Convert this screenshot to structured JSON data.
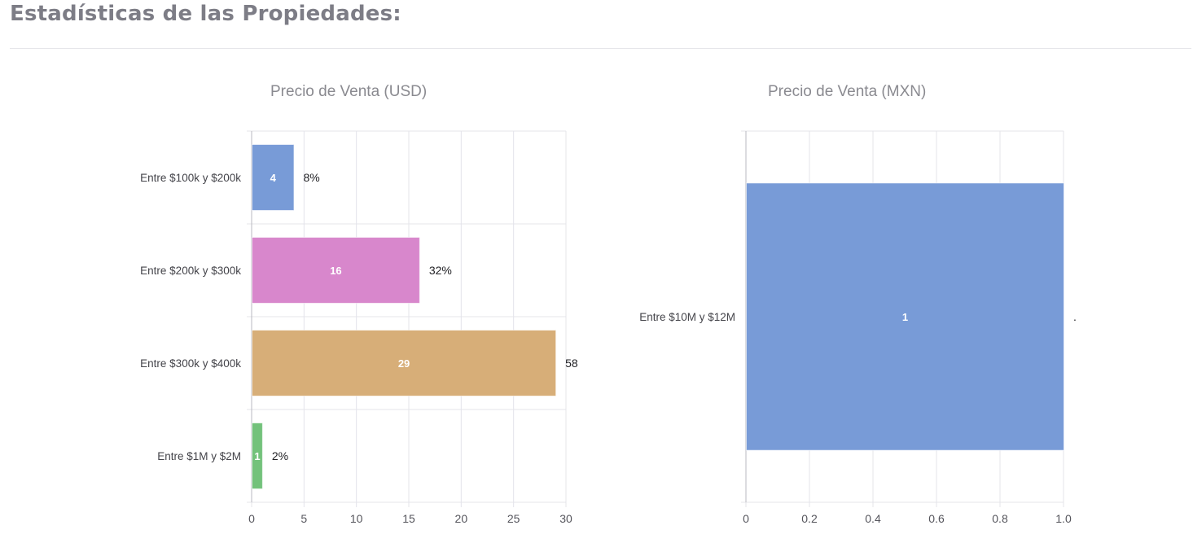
{
  "page": {
    "section_title": "Estadísticas de las Propiedades:"
  },
  "chart_data": [
    {
      "type": "bar",
      "orientation": "horizontal",
      "title": "Precio de Venta (USD)",
      "categories": [
        "Entre $100k y $200k",
        "Entre $200k y $300k",
        "Entre $300k y $400k",
        "Entre $1M y $2M"
      ],
      "values": [
        4,
        16,
        29,
        1
      ],
      "value_labels": [
        "4",
        "16",
        "29",
        "1"
      ],
      "percent_labels": [
        "8%",
        "32%",
        "58",
        "2%"
      ],
      "colors": [
        "#789bd7",
        "#d887cc",
        "#d7ae78",
        "#73c27b"
      ],
      "xlim": [
        0,
        30
      ],
      "xticks": [
        "0",
        "5",
        "10",
        "15",
        "20",
        "25",
        "30"
      ],
      "grid": true
    },
    {
      "type": "bar",
      "orientation": "horizontal",
      "title": "Precio de Venta (MXN)",
      "categories": [
        "Entre $10M y $12M"
      ],
      "values": [
        1
      ],
      "value_labels": [
        "1"
      ],
      "percent_labels": [
        "."
      ],
      "colors": [
        "#789bd7"
      ],
      "xlim": [
        0,
        1
      ],
      "xticks": [
        "0",
        "0.2",
        "0.4",
        "0.6",
        "0.8",
        "1.0"
      ],
      "grid": true
    }
  ]
}
